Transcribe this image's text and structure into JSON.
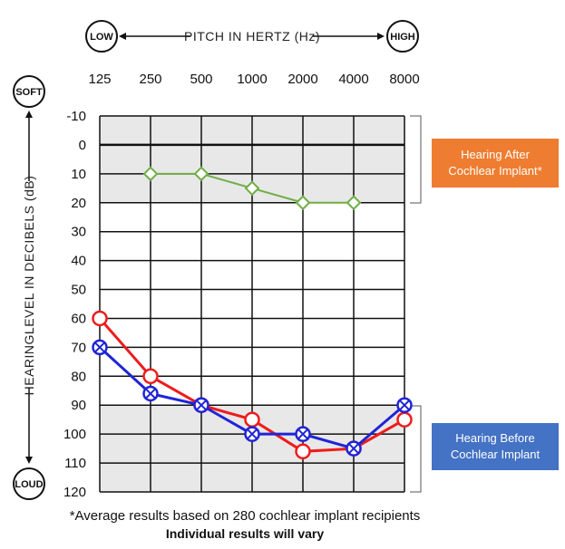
{
  "header": {
    "low_label": "LOW",
    "high_label": "HIGH",
    "pitch_label": "PITCH IN HERTZ (Hz)"
  },
  "side": {
    "soft_label": "SOFT",
    "loud_label": "LOUD",
    "level_label": "HEARINGLEVEL IN DECIBELS (dB)"
  },
  "legend": {
    "after_line1": "Hearing After",
    "after_line2": "Cochlear Implant*",
    "before_line1": "Hearing Before",
    "before_line2": "Cochlear Implant"
  },
  "footnote": {
    "line1": "*Average results based on 280 cochlear implant recipients",
    "line2": "Individual results will vary"
  },
  "colors": {
    "after": "#70ad47",
    "before_red": "#ee1c1c",
    "before_blue": "#1f24d6",
    "grid": "#111111",
    "shade": "#e8e8e8",
    "after_box": "#ee7d31",
    "before_box": "#4472c4"
  },
  "chart_data": {
    "type": "line",
    "x": [
      "125",
      "250",
      "500",
      "1000",
      "2000",
      "4000",
      "8000"
    ],
    "y_ticks": [
      -10,
      0,
      10,
      20,
      30,
      40,
      50,
      60,
      70,
      80,
      90,
      100,
      110,
      120
    ],
    "ylim": [
      -10,
      120
    ],
    "y_inverted": true,
    "grid": true,
    "shaded_ranges": [
      [
        -10,
        20
      ],
      [
        90,
        120
      ]
    ],
    "series": [
      {
        "marker": "diamond",
        "color": "#70ad47",
        "points": [
          [
            "250",
            10
          ],
          [
            "500",
            10
          ],
          [
            "1000",
            15
          ],
          [
            "2000",
            20
          ],
          [
            "4000",
            20
          ]
        ]
      },
      {
        "marker": "circle",
        "color": "#ee1c1c",
        "points": [
          [
            "125",
            60
          ],
          [
            "250",
            80
          ],
          [
            "500",
            90
          ],
          [
            "1000",
            95
          ],
          [
            "2000",
            106
          ],
          [
            "4000",
            105
          ],
          [
            "8000",
            95
          ]
        ]
      },
      {
        "marker": "circle-x",
        "color": "#1f24d6",
        "points": [
          [
            "125",
            70
          ],
          [
            "250",
            86
          ],
          [
            "500",
            90
          ],
          [
            "1000",
            100
          ],
          [
            "2000",
            100
          ],
          [
            "4000",
            105
          ],
          [
            "8000",
            90
          ]
        ]
      }
    ]
  }
}
